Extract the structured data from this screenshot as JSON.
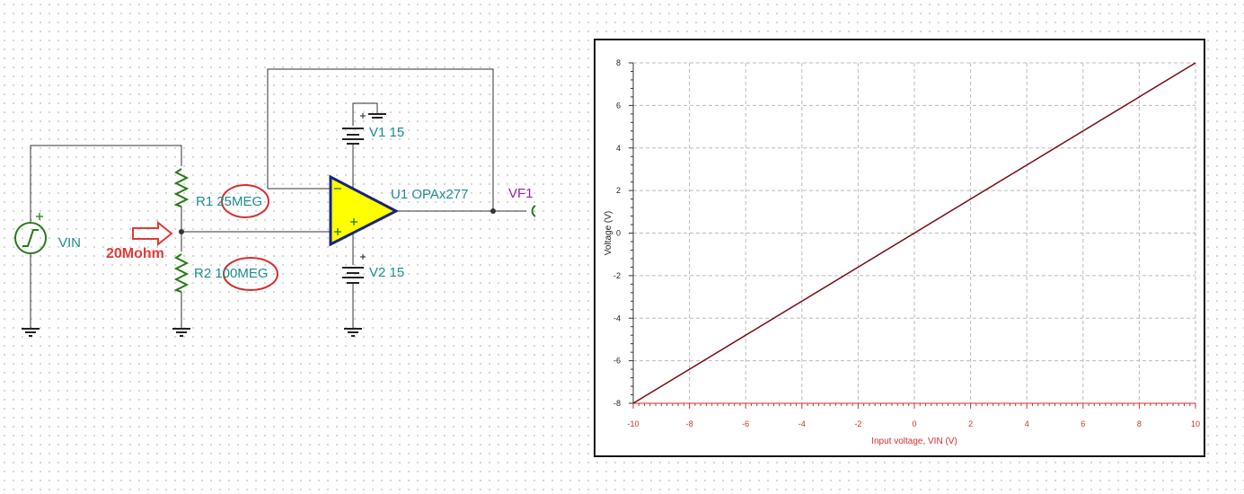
{
  "schematic": {
    "source": "VIN",
    "r1": "R1 25MEG",
    "r2": "R2 100MEG",
    "annotation": "20Mohm",
    "opamp": "U1 OPAx277",
    "v1": "V1 15",
    "v2": "V2 15",
    "probe": "VF1"
  },
  "chart_data": {
    "type": "line",
    "x": [
      -10,
      10
    ],
    "values": [
      -8,
      8
    ],
    "color": "#7a0a14",
    "xlabel": "Input voltage, VIN (V)",
    "ylabel": "Voltage (V)",
    "xlim": [
      -10,
      10
    ],
    "ylim": [
      -8,
      8
    ],
    "xticks": [
      -10,
      -8,
      -6,
      -4,
      -2,
      0,
      2,
      4,
      6,
      8,
      10
    ],
    "yticks": [
      -8,
      -6,
      -4,
      -2,
      0,
      2,
      4,
      6,
      8
    ],
    "grid": true
  }
}
